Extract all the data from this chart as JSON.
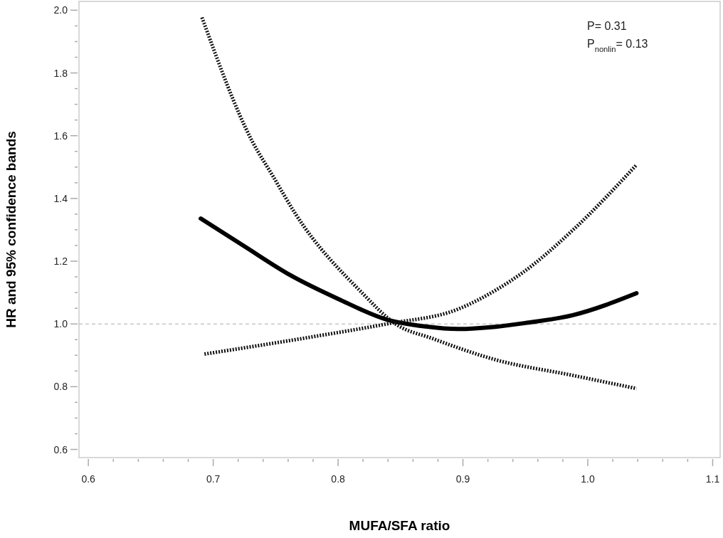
{
  "chart_data": {
    "type": "line",
    "xlabel": "MUFA/SFA ratio",
    "ylabel": "HR and 95% confidence bands",
    "annotations": [
      "P= 0.31",
      "P$_{nonlin}$= 0.13"
    ],
    "xlim": [
      0.5925,
      1.106
    ],
    "ylim": [
      0.574,
      2.028
    ],
    "xticks": [
      0.6,
      {
        "value": 0.62,
        "label": null
      },
      {
        "value": 0.64,
        "label": null
      },
      {
        "value": 0.66,
        "label": null
      },
      {
        "value": 0.68,
        "label": null
      },
      0.7,
      {
        "value": 0.72,
        "label": null
      },
      {
        "value": 0.74,
        "label": null
      },
      {
        "value": 0.76,
        "label": null
      },
      {
        "value": 0.78,
        "label": null
      },
      0.8,
      {
        "value": 0.82,
        "label": null
      },
      {
        "value": 0.84,
        "label": null
      },
      {
        "value": 0.86,
        "label": null
      },
      {
        "value": 0.88,
        "label": null
      },
      0.9,
      {
        "value": 0.92,
        "label": null
      },
      {
        "value": 0.94,
        "label": null
      },
      {
        "value": 0.96,
        "label": null
      },
      {
        "value": 0.98,
        "label": null
      },
      {
        "value": 1.0,
        "label": "1.0"
      },
      {
        "value": 1.02,
        "label": null
      },
      {
        "value": 1.04,
        "label": null
      },
      {
        "value": 1.06,
        "label": null
      },
      {
        "value": 1.08,
        "label": null
      },
      1.1
    ],
    "yticks": [
      0.6,
      {
        "value": 0.65,
        "label": null
      },
      {
        "value": 0.7,
        "label": null
      },
      {
        "value": 0.75,
        "label": null
      },
      0.8,
      {
        "value": 0.85,
        "label": null
      },
      {
        "value": 0.9,
        "label": null
      },
      {
        "value": 0.95,
        "label": null
      },
      {
        "value": 1.0,
        "label": "1.0"
      },
      {
        "value": 1.05,
        "label": null
      },
      {
        "value": 1.1,
        "label": null
      },
      {
        "value": 1.15,
        "label": null
      },
      1.2,
      {
        "value": 1.25,
        "label": null
      },
      {
        "value": 1.3,
        "label": null
      },
      {
        "value": 1.35,
        "label": null
      },
      1.4,
      {
        "value": 1.45,
        "label": null
      },
      {
        "value": 1.5,
        "label": null
      },
      {
        "value": 1.55,
        "label": null
      },
      1.6,
      {
        "value": 1.65,
        "label": null
      },
      {
        "value": 1.7,
        "label": null
      },
      {
        "value": 1.75,
        "label": null
      },
      1.8,
      {
        "value": 1.85,
        "label": null
      },
      {
        "value": 1.9,
        "label": null
      },
      {
        "value": 1.95,
        "label": null
      },
      {
        "value": 2.0,
        "label": "2.0"
      }
    ],
    "ref_lines": [
      {
        "axis": "y",
        "value": 1.0,
        "color": "#aaaaaa",
        "line_style": "dashed"
      }
    ],
    "grid": false,
    "marker": "none",
    "series": [
      {
        "color": "#000000",
        "line_style": "solid",
        "x": [
          0.69,
          0.724,
          0.762,
          0.8,
          0.839,
          0.87,
          0.896,
          0.926,
          0.95,
          0.988,
          1.039
        ],
        "values": [
          1.336,
          1.25,
          1.155,
          1.08,
          1.014,
          0.992,
          0.984,
          0.991,
          1.003,
          1.028,
          1.098
        ]
      },
      {
        "color": "#111111",
        "line_style": "dotted",
        "x": [
          0.691,
          0.731,
          0.748,
          0.766,
          0.819,
          0.846,
          0.876,
          0.926,
          0.988,
          1.039
        ],
        "values": [
          1.977,
          1.584,
          1.47,
          1.35,
          1.1,
          1.0,
          0.953,
          0.886,
          0.836,
          0.794
        ]
      },
      {
        "color": "#111111",
        "line_style": "dotted",
        "x": [
          0.693,
          0.781,
          0.839,
          0.896,
          0.926,
          0.948,
          0.988,
          1.039
        ],
        "values": [
          0.904,
          0.96,
          1.0,
          1.047,
          1.107,
          1.164,
          1.299,
          1.507
        ]
      }
    ]
  }
}
